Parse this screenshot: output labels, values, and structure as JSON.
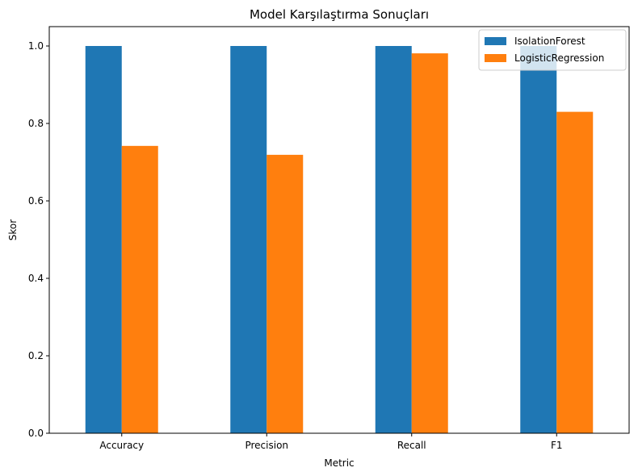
{
  "chart_data": {
    "type": "bar",
    "title": "Model Karşılaştırma Sonuçları",
    "xlabel": "Metric",
    "ylabel": "Skor",
    "categories": [
      "Accuracy",
      "Precision",
      "Recall",
      "F1"
    ],
    "series": [
      {
        "name": "IsolationForest",
        "color": "#1f77b4",
        "values": [
          1.0,
          1.0,
          1.0,
          1.0
        ]
      },
      {
        "name": "LogisticRegression",
        "color": "#ff7f0e",
        "values": [
          0.742,
          0.719,
          0.981,
          0.83
        ]
      }
    ],
    "ylim": [
      0,
      1.05
    ],
    "yticks": [
      "0.0",
      "0.2",
      "0.4",
      "0.6",
      "0.8",
      "1.0"
    ],
    "grid": false,
    "legend_position": "top-right"
  }
}
